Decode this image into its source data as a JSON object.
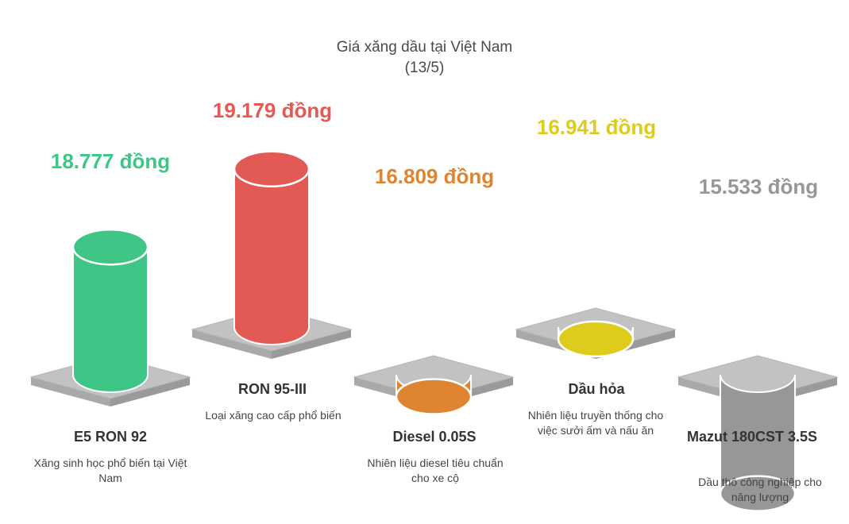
{
  "chart_data": {
    "type": "bar",
    "title": "Giá xăng dầu tại Việt Nam",
    "subtitle": "(13/5)",
    "categories": [
      "E5 RON 92",
      "RON 95-III",
      "Diesel 0.05S",
      "Dầu hỏa",
      "Mazut 180CST 3.5S"
    ],
    "values": [
      18777,
      19179,
      16809,
      16941,
      15533
    ],
    "value_labels": [
      "18.777 đồng",
      "19.179 đồng",
      "16.809 đồng",
      "16.941 đồng",
      "15.533 đồng"
    ],
    "descriptions": [
      "Xăng sinh học phổ biến tại Việt Nam",
      "Loại xăng cao cấp phổ biến",
      "Nhiên liệu diesel tiêu chuẩn cho xe cộ",
      "Nhiên liệu truyền thống cho việc sưởi ấm và nấu ăn",
      "Dầu thô công nghiệp cho năng lượng"
    ],
    "colors": [
      "#3fc585",
      "#e35a55",
      "#df8431",
      "#dfcb1c",
      "#979797"
    ],
    "base_color": "#c2c2c2",
    "grid": false
  }
}
